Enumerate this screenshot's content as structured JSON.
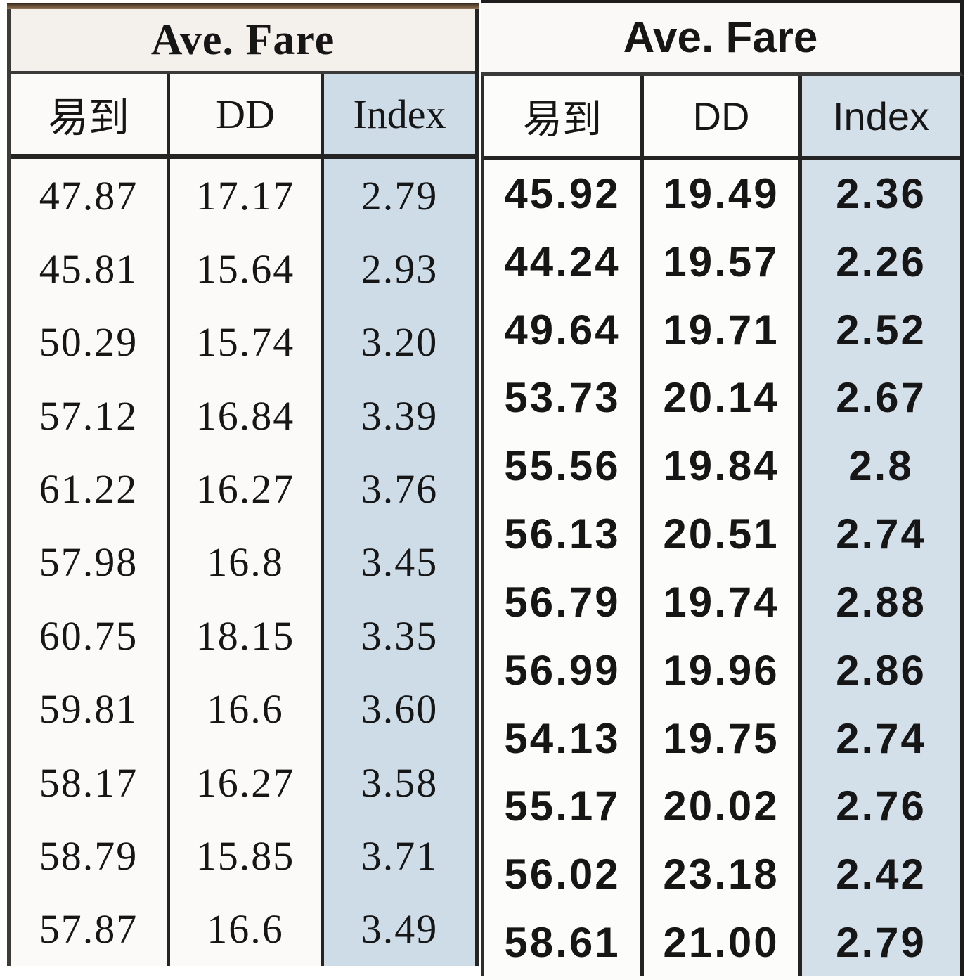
{
  "colors": {
    "index_column_bg_left": "#cedce8",
    "index_column_bg_right": "#d3dfe9",
    "left_table_bg": "#fbfaf8",
    "right_table_bg": "#fcfcfb",
    "left_title_bg": "#f4f1ec",
    "right_title_bg": "#faf9f8",
    "border_dark": "#242424",
    "top_bar_brown": "#6f5639",
    "text": "#161616"
  },
  "tables": [
    {
      "title": "Ave. Fare",
      "columns": [
        "易到",
        "DD",
        "Index"
      ],
      "rows": [
        [
          "47.87",
          "17.17",
          "2.79"
        ],
        [
          "45.81",
          "15.64",
          "2.93"
        ],
        [
          "50.29",
          "15.74",
          "3.20"
        ],
        [
          "57.12",
          "16.84",
          "3.39"
        ],
        [
          "61.22",
          "16.27",
          "3.76"
        ],
        [
          "57.98",
          "16.8",
          "3.45"
        ],
        [
          "60.75",
          "18.15",
          "3.35"
        ],
        [
          "59.81",
          "16.6",
          "3.60"
        ],
        [
          "58.17",
          "16.27",
          "3.58"
        ],
        [
          "58.79",
          "15.85",
          "3.71"
        ],
        [
          "57.87",
          "16.6",
          "3.49"
        ]
      ]
    },
    {
      "title": "Ave. Fare",
      "columns": [
        "易到",
        "DD",
        "Index"
      ],
      "rows": [
        [
          "45.92",
          "19.49",
          "2.36"
        ],
        [
          "44.24",
          "19.57",
          "2.26"
        ],
        [
          "49.64",
          "19.71",
          "2.52"
        ],
        [
          "53.73",
          "20.14",
          "2.67"
        ],
        [
          "55.56",
          "19.84",
          "2.8"
        ],
        [
          "56.13",
          "20.51",
          "2.74"
        ],
        [
          "56.79",
          "19.74",
          "2.88"
        ],
        [
          "56.99",
          "19.96",
          "2.86"
        ],
        [
          "54.13",
          "19.75",
          "2.74"
        ],
        [
          "55.17",
          "20.02",
          "2.76"
        ],
        [
          "56.02",
          "23.18",
          "2.42"
        ],
        [
          "58.61",
          "21.00",
          "2.79"
        ]
      ]
    }
  ]
}
